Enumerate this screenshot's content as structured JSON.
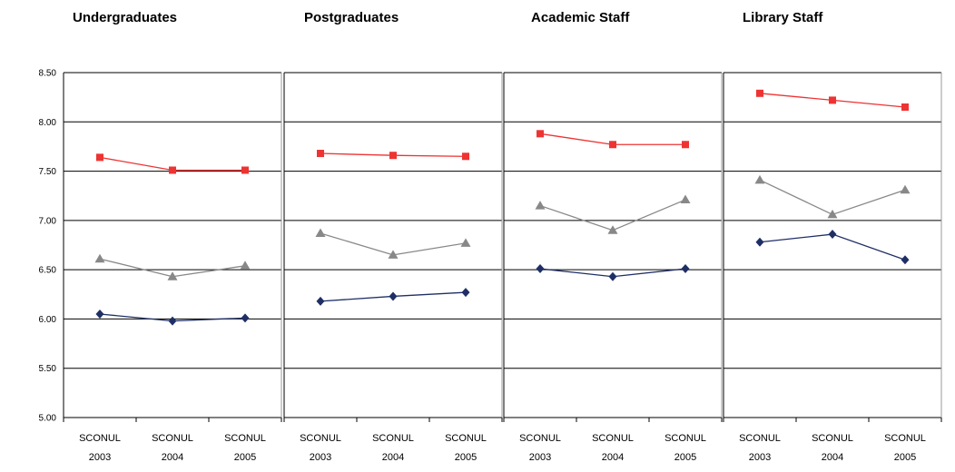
{
  "chart_data": {
    "type": "line",
    "ylim": [
      5.0,
      8.5
    ],
    "yticks": [
      "5.00",
      "5.50",
      "6.00",
      "6.50",
      "7.00",
      "7.50",
      "8.00",
      "8.50"
    ],
    "categories": [
      [
        "SCONUL",
        "2003"
      ],
      [
        "SCONUL",
        "2004"
      ],
      [
        "SCONUL",
        "2005"
      ]
    ],
    "grid": true,
    "legend": "none",
    "series_styles": [
      {
        "key": "red",
        "color": "#ee3333",
        "marker": "square"
      },
      {
        "key": "grey",
        "color": "#888888",
        "marker": "triangle"
      },
      {
        "key": "navy",
        "color": "#1f2f66",
        "marker": "diamond"
      }
    ],
    "panels": [
      {
        "title": "Undergraduates",
        "series": [
          {
            "style": "red",
            "values": [
              7.64,
              7.51,
              7.51
            ]
          },
          {
            "style": "grey",
            "values": [
              6.61,
              6.43,
              6.54
            ]
          },
          {
            "style": "navy",
            "values": [
              6.05,
              5.98,
              6.01
            ]
          }
        ]
      },
      {
        "title": "Postgraduates",
        "series": [
          {
            "style": "red",
            "values": [
              7.68,
              7.66,
              7.65
            ]
          },
          {
            "style": "grey",
            "values": [
              6.87,
              6.65,
              6.77
            ]
          },
          {
            "style": "navy",
            "values": [
              6.18,
              6.23,
              6.27
            ]
          }
        ]
      },
      {
        "title": "Academic Staff",
        "series": [
          {
            "style": "red",
            "values": [
              7.88,
              7.77,
              7.77
            ]
          },
          {
            "style": "grey",
            "values": [
              7.15,
              6.9,
              7.21
            ]
          },
          {
            "style": "navy",
            "values": [
              6.51,
              6.43,
              6.51
            ]
          }
        ]
      },
      {
        "title": "Library Staff",
        "series": [
          {
            "style": "red",
            "values": [
              8.29,
              8.22,
              8.15
            ]
          },
          {
            "style": "grey",
            "values": [
              7.41,
              7.06,
              7.31
            ]
          },
          {
            "style": "navy",
            "values": [
              6.78,
              6.86,
              6.6
            ]
          }
        ]
      }
    ]
  }
}
